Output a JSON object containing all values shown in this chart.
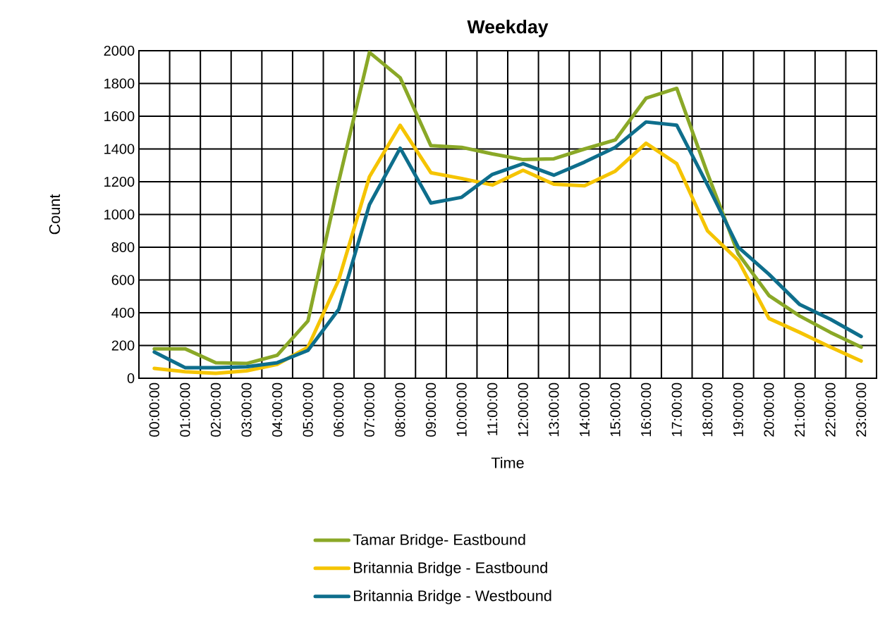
{
  "chart_data": {
    "type": "line",
    "title": "Weekday",
    "xlabel": "Time",
    "ylabel": "Count",
    "categories": [
      "00:00:00",
      "01:00:00",
      "02:00:00",
      "03:00:00",
      "04:00:00",
      "05:00:00",
      "06:00:00",
      "07:00:00",
      "08:00:00",
      "09:00:00",
      "10:00:00",
      "11:00:00",
      "12:00:00",
      "13:00:00",
      "14:00:00",
      "15:00:00",
      "16:00:00",
      "17:00:00",
      "18:00:00",
      "19:00:00",
      "20:00:00",
      "21:00:00",
      "22:00:00",
      "23:00:00"
    ],
    "ylim": [
      0,
      2000
    ],
    "yticks": [
      0,
      200,
      400,
      600,
      800,
      1000,
      1200,
      1400,
      1600,
      1800,
      2000
    ],
    "grid": true,
    "legend": "bottom",
    "line_style": "solid",
    "series": [
      {
        "name": "Tamar Bridge- Eastbound",
        "color": "#8aa827",
        "values": [
          180,
          180,
          95,
          90,
          140,
          350,
          1200,
          1990,
          1835,
          1420,
          1410,
          1370,
          1335,
          1340,
          1400,
          1455,
          1710,
          1770,
          1250,
          760,
          505,
          380,
          280,
          190
        ]
      },
      {
        "name": "Britannia Bridge - Eastbound",
        "color": "#f5c400",
        "values": [
          60,
          40,
          30,
          45,
          85,
          190,
          600,
          1230,
          1545,
          1255,
          1220,
          1180,
          1270,
          1185,
          1175,
          1265,
          1435,
          1310,
          900,
          720,
          365,
          280,
          190,
          105
        ]
      },
      {
        "name": "Britannia Bridge - Westbound",
        "color": "#0e6e8c",
        "values": [
          160,
          65,
          65,
          70,
          95,
          170,
          420,
          1060,
          1405,
          1070,
          1105,
          1245,
          1310,
          1240,
          1320,
          1410,
          1565,
          1545,
          1180,
          800,
          635,
          450,
          360,
          255
        ]
      }
    ]
  }
}
